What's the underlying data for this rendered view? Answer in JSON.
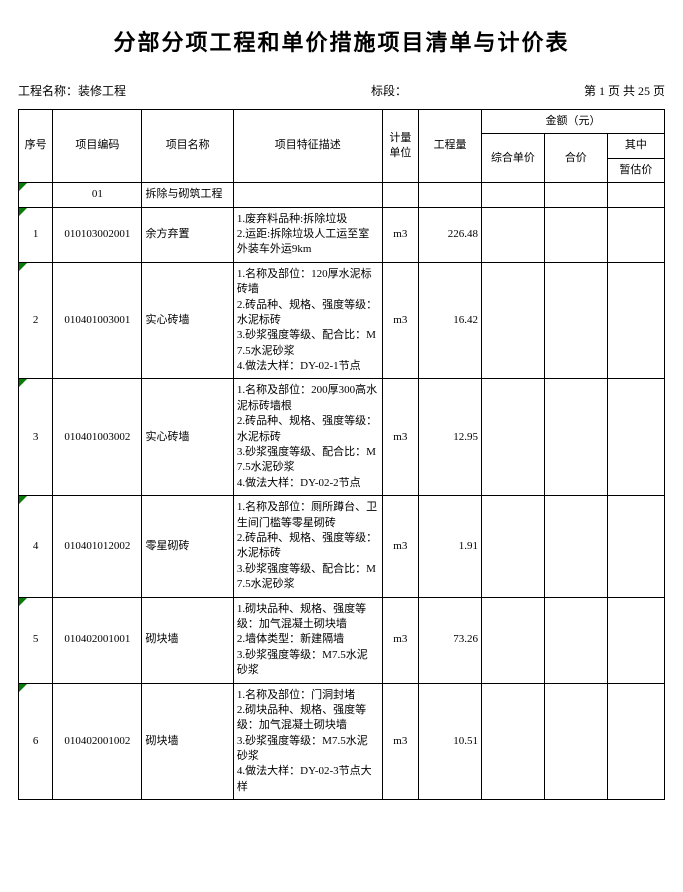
{
  "title": "分部分项工程和单价措施项目清单与计价表",
  "meta": {
    "project_label": "工程名称：",
    "project_value": "装修工程",
    "section_label": "标段：",
    "page_prefix": "第",
    "page_current": "1",
    "page_mid": "页 共",
    "page_total": "25",
    "page_suffix": "页"
  },
  "headers": {
    "seq": "序号",
    "code": "项目编码",
    "name": "项目名称",
    "desc": "项目特征描述",
    "unit": "计量单位",
    "qty": "工程量",
    "amount": "金额（元）",
    "unit_price": "综合单价",
    "total_price": "合价",
    "qizhong": "其中",
    "zangu": "暂估价"
  },
  "rows": [
    {
      "seq": "",
      "code": "01",
      "name": "拆除与砌筑工程",
      "desc": "",
      "unit": "",
      "qty": "",
      "unit_price": "",
      "total": "",
      "zangu": ""
    },
    {
      "seq": "1",
      "code": "010103002001",
      "name": "余方弃置",
      "desc": "1.废弃料品种:拆除垃圾\n2.运距:拆除垃圾人工运至室外装车外运9km",
      "unit": "m3",
      "qty": "226.48",
      "unit_price": "",
      "total": "",
      "zangu": ""
    },
    {
      "seq": "2",
      "code": "010401003001",
      "name": "实心砖墙",
      "desc": "1.名称及部位：120厚水泥标砖墙\n2.砖品种、规格、强度等级：水泥标砖\n3.砂浆强度等级、配合比：M7.5水泥砂浆\n4.做法大样：DY-02-1节点",
      "unit": "m3",
      "qty": "16.42",
      "unit_price": "",
      "total": "",
      "zangu": ""
    },
    {
      "seq": "3",
      "code": "010401003002",
      "name": "实心砖墙",
      "desc": "1.名称及部位：200厚300高水泥标砖墙根\n2.砖品种、规格、强度等级：水泥标砖\n3.砂浆强度等级、配合比：M7.5水泥砂浆\n4.做法大样：DY-02-2节点",
      "unit": "m3",
      "qty": "12.95",
      "unit_price": "",
      "total": "",
      "zangu": ""
    },
    {
      "seq": "4",
      "code": "010401012002",
      "name": "零星砌砖",
      "desc": "1.名称及部位：厕所蹲台、卫生间门槛等零星砌砖\n2.砖品种、规格、强度等级：水泥标砖\n3.砂浆强度等级、配合比：M7.5水泥砂浆",
      "unit": "m3",
      "qty": "1.91",
      "unit_price": "",
      "total": "",
      "zangu": ""
    },
    {
      "seq": "5",
      "code": "010402001001",
      "name": "砌块墙",
      "desc": "1.砌块品种、规格、强度等级：加气混凝土砌块墙\n2.墙体类型：新建隔墙\n3.砂浆强度等级：M7.5水泥砂浆",
      "unit": "m3",
      "qty": "73.26",
      "unit_price": "",
      "total": "",
      "zangu": ""
    },
    {
      "seq": "6",
      "code": "010402001002",
      "name": "砌块墙",
      "desc": "1.名称及部位：门洞封堵\n2.砌块品种、规格、强度等级：加气混凝土砌块墙\n3.砂浆强度等级：M7.5水泥砂浆\n4.做法大样：DY-02-3节点大样",
      "unit": "m3",
      "qty": "10.51",
      "unit_price": "",
      "total": "",
      "zangu": ""
    }
  ]
}
